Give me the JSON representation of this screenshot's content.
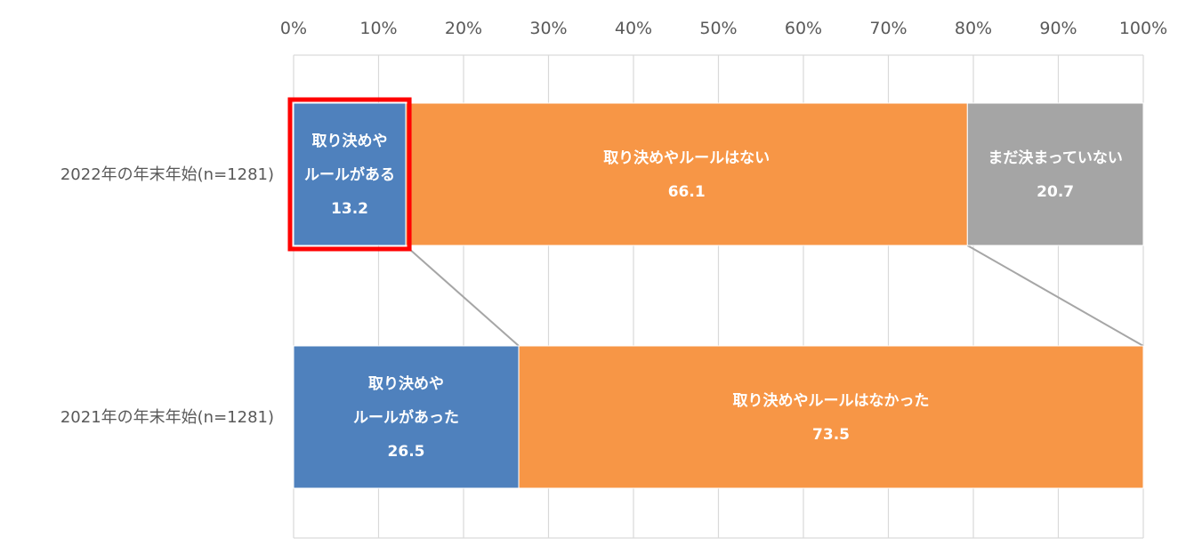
{
  "chart_data": {
    "type": "bar",
    "orientation": "horizontal",
    "stacked": true,
    "xlim": [
      0,
      100
    ],
    "x_ticks": [
      "0%",
      "10%",
      "20%",
      "30%",
      "40%",
      "50%",
      "60%",
      "70%",
      "80%",
      "90%",
      "100%"
    ],
    "grid": true,
    "categories": [
      "2022年の年末年始(n=1281)",
      "2021年の年末年始(n=1281)"
    ],
    "bars": [
      {
        "category": "2022年の年末年始(n=1281)",
        "segments": [
          {
            "label_lines": [
              "取り決めや",
              "ルールがある"
            ],
            "value": 13.2,
            "value_label": "13.2",
            "color": "#4f81bd",
            "highlight": true
          },
          {
            "label_lines": [
              "取り決めやルールはない"
            ],
            "value": 66.1,
            "value_label": "66.1",
            "color": "#f79646"
          },
          {
            "label_lines": [
              "まだ決まっていない"
            ],
            "value": 20.7,
            "value_label": "20.7",
            "color": "#a5a5a5"
          }
        ]
      },
      {
        "category": "2021年の年末年始(n=1281)",
        "segments": [
          {
            "label_lines": [
              "取り決めや",
              "ルールがあった"
            ],
            "value": 26.5,
            "value_label": "26.5",
            "color": "#4f81bd"
          },
          {
            "label_lines": [
              "取り決めやルールはなかった"
            ],
            "value": 73.5,
            "value_label": "73.5",
            "color": "#f79646"
          }
        ]
      }
    ],
    "highlight_color": "#ff0000",
    "connector_color": "#a6a6a6",
    "grid_color": "#d9d9d9"
  }
}
